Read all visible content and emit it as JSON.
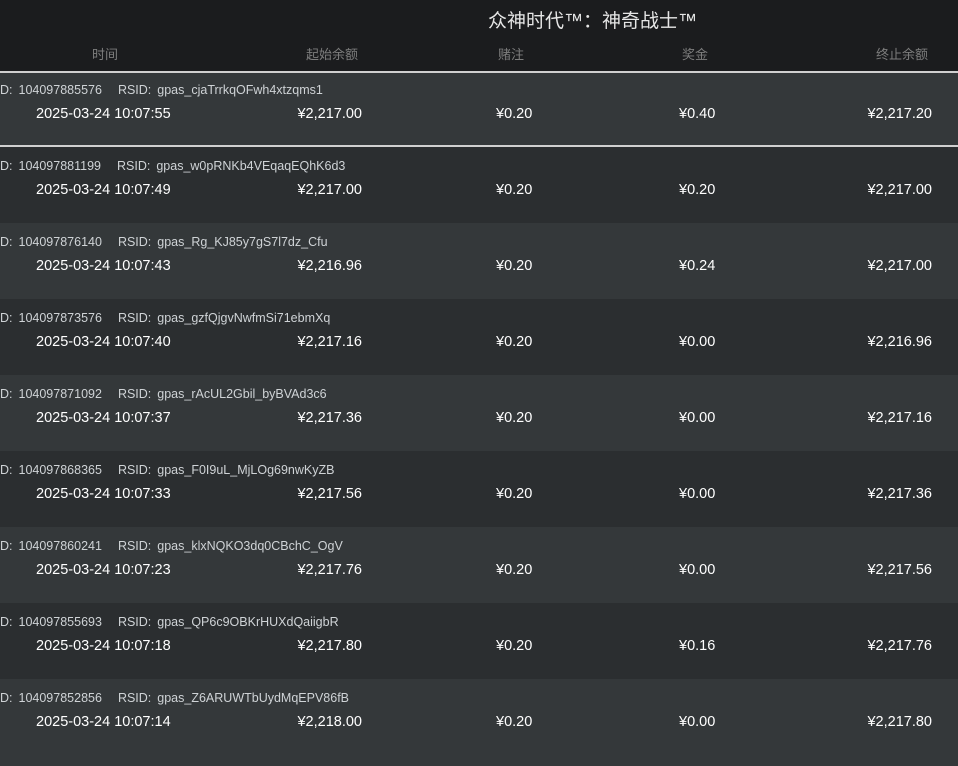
{
  "title": "众神时代™：神奇战士™",
  "columns": {
    "time": "时间",
    "start_balance": "起始余额",
    "bet": "赌注",
    "win": "奖金",
    "end_balance": "终止余额"
  },
  "id_label": "D:",
  "rsid_label": "RSID:",
  "rows": [
    {
      "id": "104097885576",
      "rsid": "gpas_cjaTrrkqOFwh4xtzqms1",
      "time": "2025-03-24 10:07:55",
      "start": "¥2,217.00",
      "bet": "¥0.20",
      "win": "¥0.40",
      "end": "¥2,217.20"
    },
    {
      "id": "104097881199",
      "rsid": "gpas_w0pRNKb4VEqaqEQhK6d3",
      "time": "2025-03-24 10:07:49",
      "start": "¥2,217.00",
      "bet": "¥0.20",
      "win": "¥0.20",
      "end": "¥2,217.00"
    },
    {
      "id": "104097876140",
      "rsid": "gpas_Rg_KJ85y7gS7l7dz_Cfu",
      "time": "2025-03-24 10:07:43",
      "start": "¥2,216.96",
      "bet": "¥0.20",
      "win": "¥0.24",
      "end": "¥2,217.00"
    },
    {
      "id": "104097873576",
      "rsid": "gpas_gzfQjgvNwfmSi71ebmXq",
      "time": "2025-03-24 10:07:40",
      "start": "¥2,217.16",
      "bet": "¥0.20",
      "win": "¥0.00",
      "end": "¥2,216.96"
    },
    {
      "id": "104097871092",
      "rsid": "gpas_rAcUL2Gbil_byBVAd3c6",
      "time": "2025-03-24 10:07:37",
      "start": "¥2,217.36",
      "bet": "¥0.20",
      "win": "¥0.00",
      "end": "¥2,217.16"
    },
    {
      "id": "104097868365",
      "rsid": "gpas_F0I9uL_MjLOg69nwKyZB",
      "time": "2025-03-24 10:07:33",
      "start": "¥2,217.56",
      "bet": "¥0.20",
      "win": "¥0.00",
      "end": "¥2,217.36"
    },
    {
      "id": "104097860241",
      "rsid": "gpas_klxNQKO3dq0CBchC_OgV",
      "time": "2025-03-24 10:07:23",
      "start": "¥2,217.76",
      "bet": "¥0.20",
      "win": "¥0.00",
      "end": "¥2,217.56"
    },
    {
      "id": "104097855693",
      "rsid": "gpas_QP6c9OBKrHUXdQaiigbR",
      "time": "2025-03-24 10:07:18",
      "start": "¥2,217.80",
      "bet": "¥0.20",
      "win": "¥0.16",
      "end": "¥2,217.76"
    },
    {
      "id": "104097852856",
      "rsid": "gpas_Z6ARUWTbUydMqEPV86fB",
      "time": "2025-03-24 10:07:14",
      "start": "¥2,218.00",
      "bet": "¥0.20",
      "win": "¥0.00",
      "end": "¥2,217.80"
    }
  ]
}
